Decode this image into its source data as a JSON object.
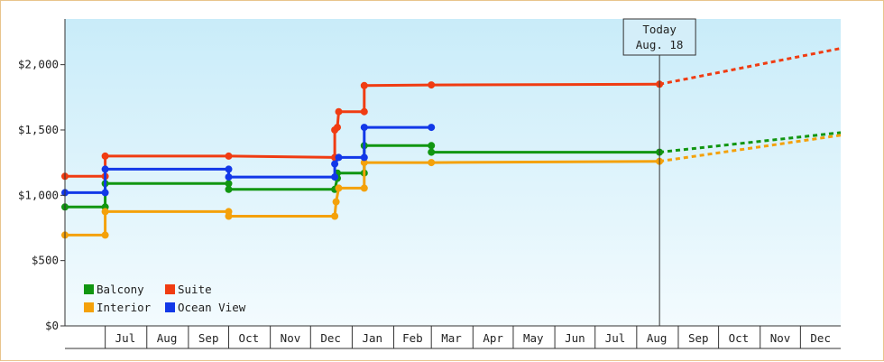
{
  "chart_data": {
    "type": "line",
    "subtype": "step",
    "title": "",
    "xlabel": "",
    "ylabel": "",
    "grid": false,
    "background": "light-blue vertical gradient",
    "ylim": [
      0,
      2350
    ],
    "y_ticks": [
      {
        "value": 0,
        "label": "$0"
      },
      {
        "value": 500,
        "label": "$500"
      },
      {
        "value": 1000,
        "label": "$1,000"
      },
      {
        "value": 1500,
        "label": "$1,500"
      },
      {
        "value": 2000,
        "label": "$2,000"
      }
    ],
    "x_range": [
      "2017-06-01",
      "2018-12-31"
    ],
    "x_ticks": [
      {
        "date": "2017-07-16",
        "label": "Jul"
      },
      {
        "date": "2017-08-16",
        "label": "Aug"
      },
      {
        "date": "2017-09-16",
        "label": "Sep"
      },
      {
        "date": "2017-10-16",
        "label": "Oct"
      },
      {
        "date": "2017-11-16",
        "label": "Nov"
      },
      {
        "date": "2017-12-16",
        "label": "Dec"
      },
      {
        "date": "2018-01-16",
        "label": "Jan"
      },
      {
        "date": "2018-02-15",
        "label": "Feb"
      },
      {
        "date": "2018-03-16",
        "label": "Mar"
      },
      {
        "date": "2018-04-16",
        "label": "Apr"
      },
      {
        "date": "2018-05-16",
        "label": "May"
      },
      {
        "date": "2018-06-16",
        "label": "Jun"
      },
      {
        "date": "2018-07-16",
        "label": "Jul"
      },
      {
        "date": "2018-08-16",
        "label": "Aug"
      },
      {
        "date": "2018-09-16",
        "label": "Sep"
      },
      {
        "date": "2018-10-16",
        "label": "Oct"
      },
      {
        "date": "2018-11-16",
        "label": "Nov"
      },
      {
        "date": "2018-12-16",
        "label": "Dec"
      }
    ],
    "today": {
      "date": "2018-08-18",
      "label_line1": "Today",
      "label_line2": "Aug. 18"
    },
    "legend": {
      "placement": "bottom-left",
      "columns": 2
    },
    "series": [
      {
        "name": "Balcony",
        "color": "#119611",
        "points": [
          [
            "2017-06-01",
            910
          ],
          [
            "2017-07-01",
            910
          ],
          [
            "2017-07-01",
            1090
          ],
          [
            "2017-10-01",
            1090
          ],
          [
            "2017-10-01",
            1045
          ],
          [
            "2017-12-19",
            1045
          ],
          [
            "2017-12-21",
            1130
          ],
          [
            "2017-12-21",
            1170
          ],
          [
            "2018-01-10",
            1170
          ],
          [
            "2018-01-10",
            1380
          ],
          [
            "2018-03-01",
            1380
          ],
          [
            "2018-03-01",
            1330
          ],
          [
            "2018-08-18",
            1330
          ]
        ],
        "forecast": [
          [
            "2018-08-18",
            1330
          ],
          [
            "2018-12-31",
            1480
          ]
        ]
      },
      {
        "name": "Interior",
        "color": "#f4a10a",
        "points": [
          [
            "2017-06-01",
            695
          ],
          [
            "2017-07-01",
            695
          ],
          [
            "2017-07-01",
            875
          ],
          [
            "2017-10-01",
            875
          ],
          [
            "2017-10-01",
            840
          ],
          [
            "2017-12-19",
            840
          ],
          [
            "2017-12-20",
            950
          ],
          [
            "2017-12-22",
            1055
          ],
          [
            "2018-01-10",
            1055
          ],
          [
            "2018-01-10",
            1250
          ],
          [
            "2018-03-01",
            1250
          ],
          [
            "2018-08-18",
            1260
          ]
        ],
        "forecast": [
          [
            "2018-08-18",
            1260
          ],
          [
            "2018-12-31",
            1460
          ]
        ]
      },
      {
        "name": "Suite",
        "color": "#f03c12",
        "points": [
          [
            "2017-06-01",
            1145
          ],
          [
            "2017-07-01",
            1145
          ],
          [
            "2017-07-01",
            1300
          ],
          [
            "2017-10-01",
            1300
          ],
          [
            "2017-12-19",
            1290
          ],
          [
            "2017-12-19",
            1500
          ],
          [
            "2017-12-21",
            1520
          ],
          [
            "2017-12-22",
            1640
          ],
          [
            "2018-01-10",
            1640
          ],
          [
            "2018-01-10",
            1840
          ],
          [
            "2018-03-01",
            1845
          ],
          [
            "2018-08-18",
            1850
          ]
        ],
        "forecast": [
          [
            "2018-08-18",
            1850
          ],
          [
            "2018-12-31",
            2125
          ]
        ]
      },
      {
        "name": "Ocean View",
        "color": "#1238e8",
        "points": [
          [
            "2017-06-01",
            1020
          ],
          [
            "2017-07-01",
            1020
          ],
          [
            "2017-07-01",
            1200
          ],
          [
            "2017-10-01",
            1200
          ],
          [
            "2017-10-01",
            1140
          ],
          [
            "2017-12-19",
            1140
          ],
          [
            "2017-12-19",
            1240
          ],
          [
            "2017-12-22",
            1290
          ],
          [
            "2018-01-10",
            1290
          ],
          [
            "2018-01-10",
            1520
          ],
          [
            "2018-03-01",
            1520
          ]
        ],
        "forecast": []
      }
    ]
  }
}
